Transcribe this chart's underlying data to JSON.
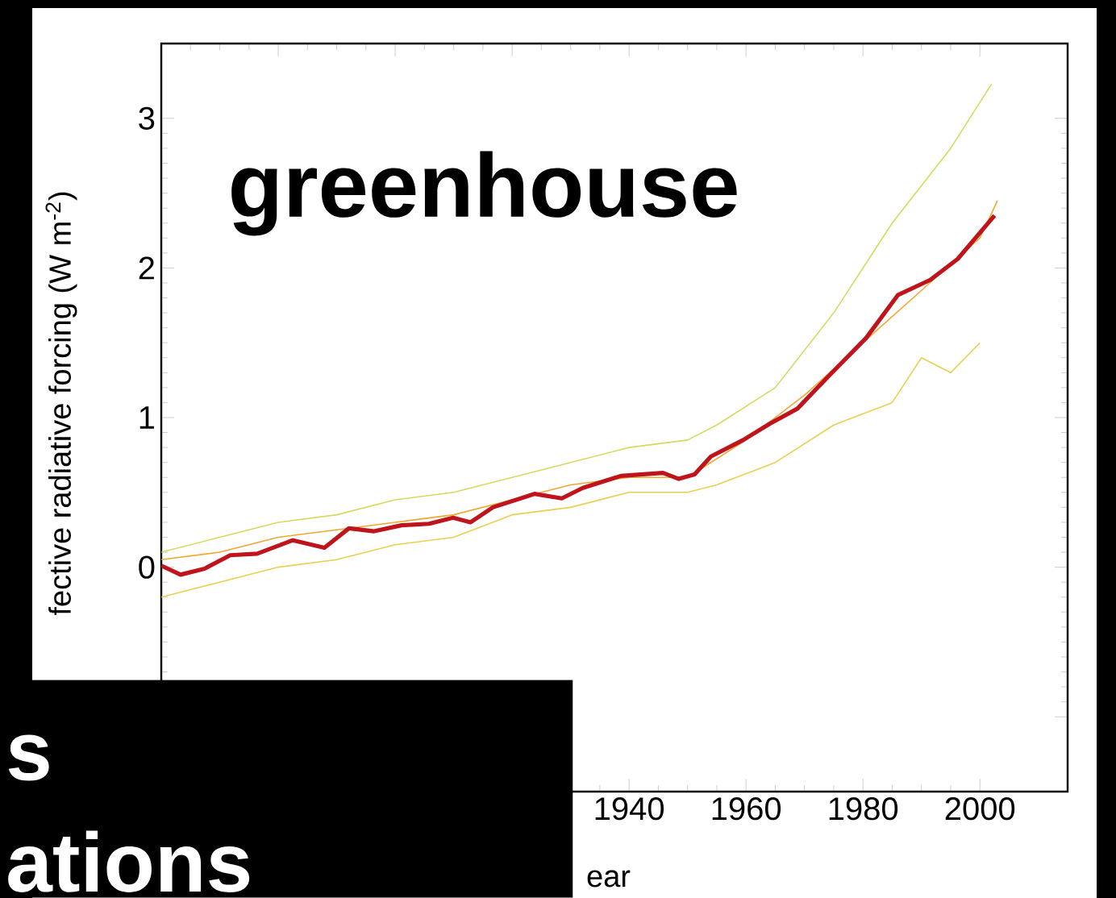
{
  "chart_data": {
    "type": "line",
    "xlabel": "ear",
    "ylabel": "fective radiative forcing (W m$^{-2}$)",
    "annotations": [
      "greenhouse",
      "s",
      "ations"
    ],
    "xlim": [
      1860,
      2015
    ],
    "ylim": [
      -1.5,
      3.5
    ],
    "xticks": [
      {
        "value": 1860,
        "label": null
      },
      {
        "value": 1880,
        "label": null
      },
      {
        "value": 1900,
        "label": null
      },
      {
        "value": 1920,
        "label": null
      },
      1940,
      1960,
      1980,
      2000
    ],
    "yticks": [
      {
        "value": -1,
        "label": null
      },
      0,
      1,
      2,
      3
    ],
    "series": [
      {
        "color": "#d8d860",
        "x": [
          1860,
          1870,
          1880,
          1890,
          1900,
          1910,
          1920,
          1930,
          1940,
          1950,
          1955,
          1965,
          1975,
          1985,
          1995,
          2002
        ],
        "values": [
          0.1,
          0.2,
          0.3,
          0.35,
          0.45,
          0.5,
          0.6,
          0.7,
          0.8,
          0.85,
          0.95,
          1.2,
          1.7,
          2.3,
          2.8,
          3.23
        ]
      },
      {
        "color": "#f0a830",
        "x": [
          1860,
          1870,
          1880,
          1890,
          1900,
          1910,
          1920,
          1930,
          1940,
          1950,
          1960,
          1970,
          1980,
          1990,
          2000,
          2003
        ],
        "values": [
          0.05,
          0.1,
          0.2,
          0.25,
          0.3,
          0.35,
          0.45,
          0.55,
          0.6,
          0.6,
          0.85,
          1.15,
          1.5,
          1.85,
          2.2,
          2.45
        ]
      },
      {
        "color": "#e8d050",
        "x": [
          1860,
          1870,
          1880,
          1890,
          1900,
          1910,
          1920,
          1930,
          1940,
          1950,
          1955,
          1965,
          1975,
          1985,
          1990,
          1995,
          2000
        ],
        "values": [
          -0.2,
          -0.1,
          0.0,
          0.05,
          0.15,
          0.2,
          0.35,
          0.4,
          0.5,
          0.5,
          0.55,
          0.7,
          0.95,
          1.1,
          1.4,
          1.3,
          1.5
        ]
      },
      {
        "color": "#c0141c",
        "x": [
          1860,
          1863.3,
          1867.4,
          1871.8,
          1876.4,
          1882.5,
          1887.9,
          1892.1,
          1896.4,
          1901.1,
          1905.8,
          1909.9,
          1912.9,
          1916.7,
          1923.8,
          1928.5,
          1932.1,
          1938.6,
          1945.8,
          1948.5,
          1951.2,
          1954,
          1959.5,
          1964.1,
          1968.8,
          1974.2,
          1980.5,
          1986,
          1991.5,
          1996.2,
          2002.5
        ],
        "values": [
          0.01,
          -0.05,
          -0.01,
          0.08,
          0.09,
          0.18,
          0.13,
          0.26,
          0.24,
          0.28,
          0.29,
          0.33,
          0.3,
          0.4,
          0.49,
          0.46,
          0.53,
          0.61,
          0.63,
          0.59,
          0.62,
          0.74,
          0.85,
          0.96,
          1.06,
          1.28,
          1.53,
          1.82,
          1.92,
          2.06,
          2.35
        ]
      }
    ]
  }
}
